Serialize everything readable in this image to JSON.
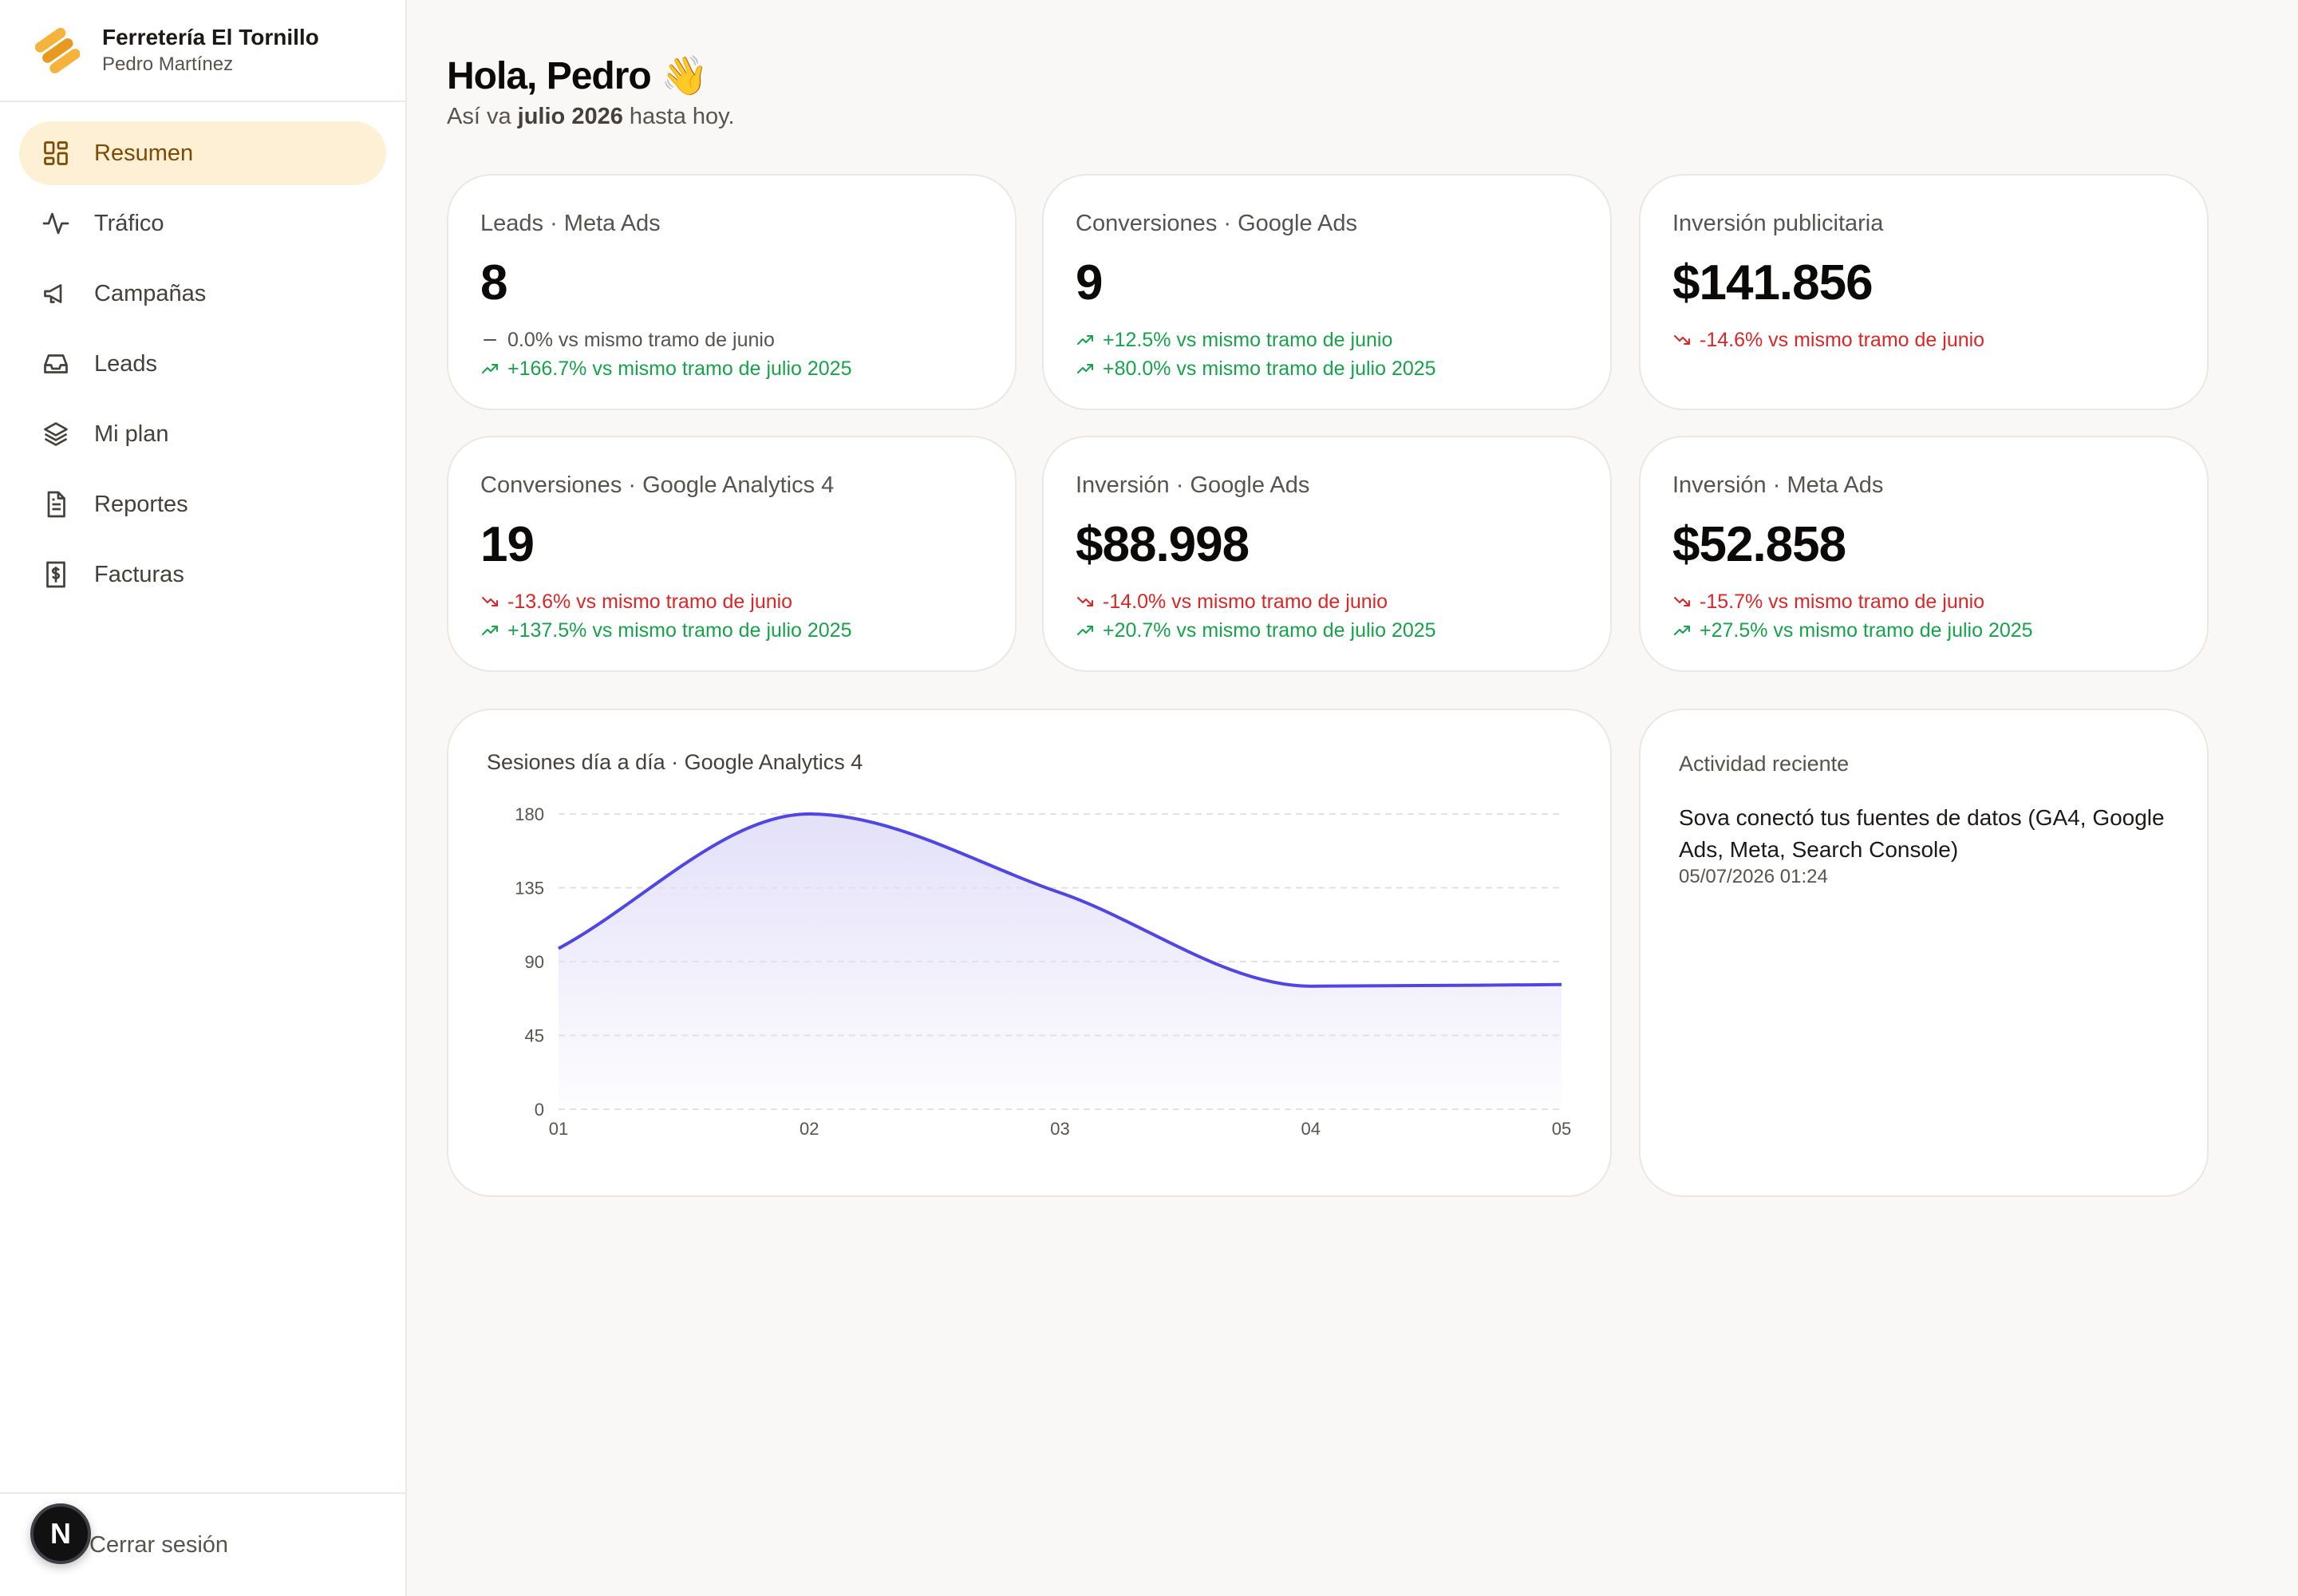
{
  "brand": {
    "name": "Ferretería El Tornillo",
    "user": "Pedro Martínez"
  },
  "nav": [
    {
      "label": "Resumen",
      "icon": "dashboard-icon",
      "active": true
    },
    {
      "label": "Tráfico",
      "icon": "activity-icon"
    },
    {
      "label": "Campañas",
      "icon": "megaphone-icon"
    },
    {
      "label": "Leads",
      "icon": "inbox-icon"
    },
    {
      "label": "Mi plan",
      "icon": "layers-icon"
    },
    {
      "label": "Reportes",
      "icon": "document-icon"
    },
    {
      "label": "Facturas",
      "icon": "receipt-icon"
    }
  ],
  "footer": {
    "logout_label": "Cerrar sesión",
    "badge": "N"
  },
  "header": {
    "greeting": "Hola, Pedro 👋",
    "sub_prefix": "Así va ",
    "sub_period": "julio 2026",
    "sub_suffix": " hasta hoy."
  },
  "kpis": [
    {
      "label": "Leads · Meta Ads",
      "value": "8",
      "rows": [
        {
          "trend": "flat",
          "text": "0.0% vs mismo tramo de junio"
        },
        {
          "trend": "up",
          "text": "+166.7% vs mismo tramo de julio 2025"
        }
      ]
    },
    {
      "label": "Conversiones · Google Ads",
      "value": "9",
      "rows": [
        {
          "trend": "up",
          "text": "+12.5% vs mismo tramo de junio"
        },
        {
          "trend": "up",
          "text": "+80.0% vs mismo tramo de julio 2025"
        }
      ]
    },
    {
      "label": "Inversión publicitaria",
      "value": "$141.856",
      "rows": [
        {
          "trend": "down",
          "text": "-14.6% vs mismo tramo de junio"
        }
      ]
    },
    {
      "label": "Conversiones · Google Analytics 4",
      "value": "19",
      "rows": [
        {
          "trend": "down",
          "text": "-13.6% vs mismo tramo de junio"
        },
        {
          "trend": "up",
          "text": "+137.5% vs mismo tramo de julio 2025"
        }
      ]
    },
    {
      "label": "Inversión · Google Ads",
      "value": "$88.998",
      "rows": [
        {
          "trend": "down",
          "text": "-14.0% vs mismo tramo de junio"
        },
        {
          "trend": "up",
          "text": "+20.7% vs mismo tramo de julio 2025"
        }
      ]
    },
    {
      "label": "Inversión · Meta Ads",
      "value": "$52.858",
      "rows": [
        {
          "trend": "down",
          "text": "-15.7% vs mismo tramo de junio"
        },
        {
          "trend": "up",
          "text": "+27.5% vs mismo tramo de julio 2025"
        }
      ]
    }
  ],
  "chart_data": {
    "type": "area",
    "title": "Sesiones día a día · Google Analytics 4",
    "x": [
      "01",
      "02",
      "03",
      "04",
      "05"
    ],
    "series": [
      {
        "values": [
          98,
          180,
          132,
          75,
          76
        ]
      }
    ],
    "ylim": [
      0,
      180
    ],
    "yticks": [
      0,
      45,
      90,
      135,
      180
    ],
    "grid": true,
    "colors": {
      "line": "#4f46e5",
      "fill": "#e0ddf8"
    }
  },
  "activity": {
    "title": "Actividad reciente",
    "items": [
      {
        "text": "Sova conectó tus fuentes de datos (GA4, Google Ads, Meta, Search Console)",
        "time": "05/07/2026 01:24"
      }
    ]
  },
  "colors": {
    "accent": "#fdf0d5",
    "accent_text": "#7c4a03",
    "up": "#16a34a",
    "down": "#dc2626"
  }
}
